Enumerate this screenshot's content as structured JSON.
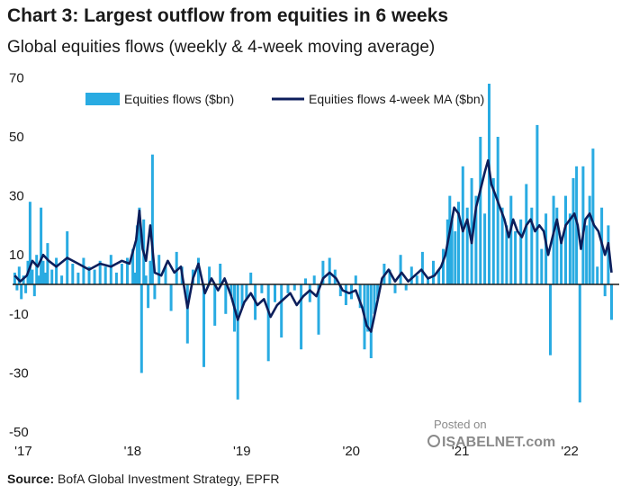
{
  "chart_data": {
    "type": "bar",
    "title": "Chart 3: Largest outflow from equities in 6 weeks",
    "subtitle": "Global equities flows (weekly & 4-week moving average)",
    "xlabel": "",
    "ylabel": "",
    "ylim": [
      -50,
      75
    ],
    "y_ticks": [
      70,
      50,
      30,
      10,
      -10,
      -30,
      -50
    ],
    "x_tick_labels": [
      "'17",
      "'18",
      "'19",
      "'20",
      "'21",
      "'22"
    ],
    "x_tick_years": [
      2017,
      2018,
      2019,
      2020,
      2021,
      2022
    ],
    "x_range_years": [
      2016.9,
      2022.45
    ],
    "grid": false,
    "legend_position": "top",
    "colors": {
      "bars": "#29abe2",
      "ma_line": "#0c1e5b",
      "zero_line": "#1a1a1a"
    },
    "series": [
      {
        "name": "Equities flows ($bn)",
        "type": "bar",
        "points": [
          [
            2016.92,
            4
          ],
          [
            2016.94,
            -2
          ],
          [
            2016.96,
            6
          ],
          [
            2016.98,
            -5
          ],
          [
            2017.0,
            3
          ],
          [
            2017.02,
            -3
          ],
          [
            2017.04,
            8
          ],
          [
            2017.06,
            28
          ],
          [
            2017.08,
            5
          ],
          [
            2017.1,
            -4
          ],
          [
            2017.12,
            10
          ],
          [
            2017.14,
            3
          ],
          [
            2017.16,
            26
          ],
          [
            2017.18,
            8
          ],
          [
            2017.2,
            4
          ],
          [
            2017.22,
            14
          ],
          [
            2017.26,
            5
          ],
          [
            2017.3,
            9
          ],
          [
            2017.35,
            3
          ],
          [
            2017.4,
            18
          ],
          [
            2017.45,
            7
          ],
          [
            2017.5,
            4
          ],
          [
            2017.55,
            9
          ],
          [
            2017.6,
            6
          ],
          [
            2017.65,
            5
          ],
          [
            2017.7,
            8
          ],
          [
            2017.75,
            6
          ],
          [
            2017.8,
            10
          ],
          [
            2017.85,
            4
          ],
          [
            2017.9,
            7
          ],
          [
            2017.95,
            9
          ],
          [
            2018.0,
            12
          ],
          [
            2018.02,
            4
          ],
          [
            2018.04,
            20
          ],
          [
            2018.06,
            26
          ],
          [
            2018.08,
            -30
          ],
          [
            2018.1,
            22
          ],
          [
            2018.12,
            3
          ],
          [
            2018.14,
            -8
          ],
          [
            2018.16,
            8
          ],
          [
            2018.18,
            44
          ],
          [
            2018.2,
            -5
          ],
          [
            2018.24,
            10
          ],
          [
            2018.3,
            6
          ],
          [
            2018.35,
            -9
          ],
          [
            2018.4,
            11
          ],
          [
            2018.45,
            6
          ],
          [
            2018.5,
            -20
          ],
          [
            2018.55,
            5
          ],
          [
            2018.6,
            9
          ],
          [
            2018.65,
            -28
          ],
          [
            2018.7,
            6
          ],
          [
            2018.75,
            -14
          ],
          [
            2018.8,
            7
          ],
          [
            2018.85,
            -10
          ],
          [
            2018.9,
            -4
          ],
          [
            2018.93,
            -16
          ],
          [
            2018.96,
            -39
          ],
          [
            2019.0,
            -8
          ],
          [
            2019.04,
            -5
          ],
          [
            2019.08,
            4
          ],
          [
            2019.12,
            -12
          ],
          [
            2019.18,
            -3
          ],
          [
            2019.24,
            -26
          ],
          [
            2019.3,
            -6
          ],
          [
            2019.36,
            -18
          ],
          [
            2019.42,
            -3
          ],
          [
            2019.48,
            -2
          ],
          [
            2019.54,
            -22
          ],
          [
            2019.58,
            2
          ],
          [
            2019.62,
            -6
          ],
          [
            2019.66,
            3
          ],
          [
            2019.7,
            -17
          ],
          [
            2019.74,
            8
          ],
          [
            2019.8,
            9
          ],
          [
            2019.85,
            5
          ],
          [
            2019.9,
            -4
          ],
          [
            2019.95,
            -7
          ],
          [
            2020.0,
            -5
          ],
          [
            2020.04,
            3
          ],
          [
            2020.08,
            -8
          ],
          [
            2020.12,
            -22
          ],
          [
            2020.15,
            -16
          ],
          [
            2020.18,
            -25
          ],
          [
            2020.21,
            -10
          ],
          [
            2020.24,
            -5
          ],
          [
            2020.3,
            7
          ],
          [
            2020.35,
            5
          ],
          [
            2020.4,
            -3
          ],
          [
            2020.45,
            10
          ],
          [
            2020.5,
            -2
          ],
          [
            2020.55,
            6
          ],
          [
            2020.6,
            3
          ],
          [
            2020.65,
            11
          ],
          [
            2020.7,
            2
          ],
          [
            2020.75,
            8
          ],
          [
            2020.8,
            5
          ],
          [
            2020.84,
            12
          ],
          [
            2020.88,
            22
          ],
          [
            2020.9,
            30
          ],
          [
            2020.92,
            22
          ],
          [
            2020.95,
            18
          ],
          [
            2020.98,
            28
          ],
          [
            2021.02,
            40
          ],
          [
            2021.06,
            26
          ],
          [
            2021.1,
            36
          ],
          [
            2021.14,
            30
          ],
          [
            2021.18,
            50
          ],
          [
            2021.22,
            24
          ],
          [
            2021.26,
            68
          ],
          [
            2021.3,
            36
          ],
          [
            2021.34,
            50
          ],
          [
            2021.38,
            26
          ],
          [
            2021.42,
            20
          ],
          [
            2021.46,
            30
          ],
          [
            2021.5,
            18
          ],
          [
            2021.55,
            22
          ],
          [
            2021.6,
            34
          ],
          [
            2021.65,
            26
          ],
          [
            2021.7,
            54
          ],
          [
            2021.74,
            12
          ],
          [
            2021.78,
            24
          ],
          [
            2021.82,
            -24
          ],
          [
            2021.85,
            30
          ],
          [
            2021.88,
            26
          ],
          [
            2021.92,
            16
          ],
          [
            2021.96,
            30
          ],
          [
            2022.0,
            24
          ],
          [
            2022.03,
            36
          ],
          [
            2022.06,
            40
          ],
          [
            2022.09,
            -40
          ],
          [
            2022.12,
            40
          ],
          [
            2022.15,
            20
          ],
          [
            2022.18,
            30
          ],
          [
            2022.21,
            46
          ],
          [
            2022.25,
            6
          ],
          [
            2022.29,
            26
          ],
          [
            2022.32,
            -4
          ],
          [
            2022.35,
            20
          ],
          [
            2022.38,
            -12
          ]
        ]
      },
      {
        "name": "Equities flows 4-week MA ($bn)",
        "type": "line",
        "points": [
          [
            2016.92,
            3
          ],
          [
            2016.97,
            1
          ],
          [
            2017.03,
            3
          ],
          [
            2017.08,
            8
          ],
          [
            2017.13,
            6
          ],
          [
            2017.18,
            10
          ],
          [
            2017.23,
            8
          ],
          [
            2017.3,
            6
          ],
          [
            2017.4,
            9
          ],
          [
            2017.5,
            7
          ],
          [
            2017.6,
            5
          ],
          [
            2017.7,
            7
          ],
          [
            2017.8,
            6
          ],
          [
            2017.9,
            8
          ],
          [
            2017.97,
            7
          ],
          [
            2018.03,
            15
          ],
          [
            2018.06,
            25
          ],
          [
            2018.09,
            12
          ],
          [
            2018.12,
            8
          ],
          [
            2018.16,
            20
          ],
          [
            2018.2,
            4
          ],
          [
            2018.26,
            3
          ],
          [
            2018.32,
            8
          ],
          [
            2018.38,
            4
          ],
          [
            2018.44,
            6
          ],
          [
            2018.5,
            -8
          ],
          [
            2018.55,
            2
          ],
          [
            2018.6,
            7
          ],
          [
            2018.66,
            -3
          ],
          [
            2018.72,
            2
          ],
          [
            2018.78,
            -2
          ],
          [
            2018.84,
            2
          ],
          [
            2018.9,
            -4
          ],
          [
            2018.96,
            -12
          ],
          [
            2019.02,
            -6
          ],
          [
            2019.08,
            -3
          ],
          [
            2019.14,
            -7
          ],
          [
            2019.2,
            -5
          ],
          [
            2019.26,
            -11
          ],
          [
            2019.32,
            -7
          ],
          [
            2019.38,
            -5
          ],
          [
            2019.44,
            -3
          ],
          [
            2019.5,
            -7
          ],
          [
            2019.56,
            -4
          ],
          [
            2019.62,
            -2
          ],
          [
            2019.68,
            -4
          ],
          [
            2019.74,
            2
          ],
          [
            2019.8,
            4
          ],
          [
            2019.86,
            2
          ],
          [
            2019.92,
            -2
          ],
          [
            2019.98,
            -3
          ],
          [
            2020.04,
            -2
          ],
          [
            2020.1,
            -8
          ],
          [
            2020.14,
            -14
          ],
          [
            2020.18,
            -16
          ],
          [
            2020.22,
            -9
          ],
          [
            2020.28,
            2
          ],
          [
            2020.34,
            5
          ],
          [
            2020.4,
            1
          ],
          [
            2020.46,
            4
          ],
          [
            2020.52,
            1
          ],
          [
            2020.58,
            3
          ],
          [
            2020.64,
            5
          ],
          [
            2020.7,
            2
          ],
          [
            2020.76,
            3
          ],
          [
            2020.82,
            6
          ],
          [
            2020.86,
            10
          ],
          [
            2020.9,
            18
          ],
          [
            2020.94,
            26
          ],
          [
            2020.98,
            24
          ],
          [
            2021.02,
            18
          ],
          [
            2021.06,
            22
          ],
          [
            2021.1,
            14
          ],
          [
            2021.14,
            26
          ],
          [
            2021.18,
            32
          ],
          [
            2021.22,
            38
          ],
          [
            2021.25,
            42
          ],
          [
            2021.28,
            34
          ],
          [
            2021.32,
            30
          ],
          [
            2021.36,
            26
          ],
          [
            2021.4,
            22
          ],
          [
            2021.44,
            16
          ],
          [
            2021.48,
            22
          ],
          [
            2021.52,
            18
          ],
          [
            2021.56,
            16
          ],
          [
            2021.6,
            20
          ],
          [
            2021.64,
            22
          ],
          [
            2021.68,
            18
          ],
          [
            2021.72,
            20
          ],
          [
            2021.76,
            18
          ],
          [
            2021.8,
            10
          ],
          [
            2021.84,
            16
          ],
          [
            2021.88,
            22
          ],
          [
            2021.92,
            14
          ],
          [
            2021.96,
            20
          ],
          [
            2022.0,
            22
          ],
          [
            2022.04,
            24
          ],
          [
            2022.07,
            20
          ],
          [
            2022.1,
            12
          ],
          [
            2022.14,
            22
          ],
          [
            2022.18,
            24
          ],
          [
            2022.22,
            20
          ],
          [
            2022.26,
            18
          ],
          [
            2022.29,
            14
          ],
          [
            2022.32,
            10
          ],
          [
            2022.35,
            14
          ],
          [
            2022.38,
            4
          ]
        ]
      }
    ]
  },
  "source": {
    "label": "Source:",
    "text": "BofA Global Investment Strategy, EPFR"
  },
  "watermark": {
    "line1": "Posted on",
    "line2": "ISABELNET.com"
  }
}
